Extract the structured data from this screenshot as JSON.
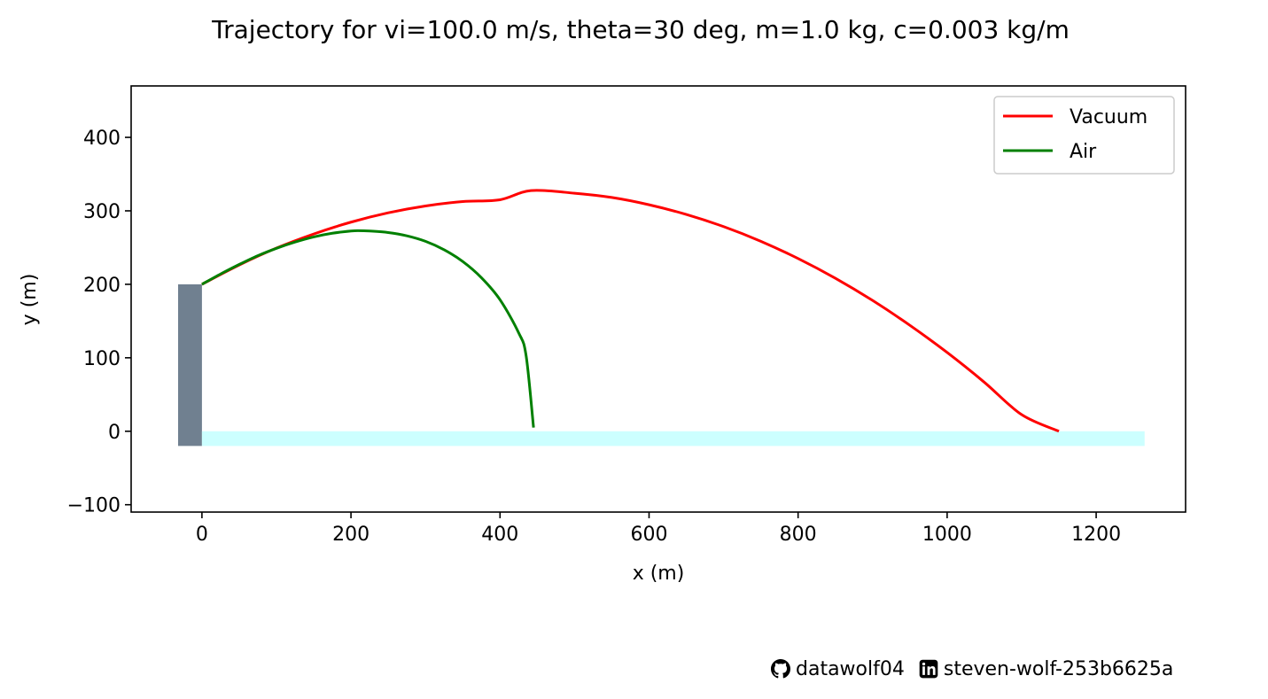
{
  "chart_data": {
    "type": "line",
    "title": "Trajectory for vi=100.0 m/s, theta=30 deg, m=1.0 kg, c=0.003 kg/m",
    "xlabel": "x (m)",
    "ylabel": "y (m)",
    "xlim": [
      -95,
      1320
    ],
    "ylim": [
      -110,
      470
    ],
    "xticks": [
      0,
      200,
      400,
      600,
      800,
      1000,
      1200
    ],
    "yticks": [
      -100,
      0,
      100,
      200,
      300,
      400
    ],
    "tick_labels_x": [
      "0",
      "200",
      "400",
      "600",
      "800",
      "1000",
      "1200"
    ],
    "tick_labels_y": [
      "−100",
      "0",
      "100",
      "200",
      "300",
      "400"
    ],
    "grid": false,
    "legend": "top-right",
    "series": [
      {
        "name": "Vacuum",
        "color": "#ff0000",
        "points": [
          [
            0,
            200
          ],
          [
            50,
            226.3
          ],
          [
            100,
            249.3
          ],
          [
            150,
            268.5
          ],
          [
            200,
            284.6
          ],
          [
            250,
            297.3
          ],
          [
            300,
            306.6
          ],
          [
            350,
            312.6
          ],
          [
            400,
            315.1
          ],
          [
            441.5,
            327.6
          ],
          [
            500,
            324.0
          ],
          [
            550,
            318.2
          ],
          [
            600,
            308.3
          ],
          [
            650,
            295.1
          ],
          [
            700,
            278.6
          ],
          [
            750,
            258.6
          ],
          [
            800,
            235.1
          ],
          [
            850,
            208.3
          ],
          [
            900,
            178.0
          ],
          [
            950,
            144.2
          ],
          [
            1000,
            107.2
          ],
          [
            1050,
            66.6
          ],
          [
            1100,
            22.6
          ],
          [
            1150,
            0
          ]
        ]
      },
      {
        "name": "Air",
        "color": "#008000",
        "points": [
          [
            0,
            200
          ],
          [
            25,
            214
          ],
          [
            50,
            227
          ],
          [
            75,
            239
          ],
          [
            100,
            249
          ],
          [
            125,
            257.5
          ],
          [
            150,
            264.5
          ],
          [
            175,
            269.5
          ],
          [
            200,
            272.5
          ],
          [
            210,
            273
          ],
          [
            225,
            272.5
          ],
          [
            250,
            270.5
          ],
          [
            275,
            266
          ],
          [
            300,
            258.5
          ],
          [
            325,
            247
          ],
          [
            350,
            231
          ],
          [
            375,
            209
          ],
          [
            400,
            179
          ],
          [
            425,
            134
          ],
          [
            435,
            103
          ],
          [
            445,
            5
          ]
        ]
      }
    ],
    "shapes": [
      {
        "name": "tower",
        "color": "#708090",
        "x": [
          -32,
          0
        ],
        "y": [
          -20,
          200
        ]
      },
      {
        "name": "ground",
        "color": "#ccffff",
        "x": [
          0,
          1265
        ],
        "y": [
          -20,
          0
        ]
      }
    ]
  },
  "footer": {
    "github_icon": "github-icon",
    "github_user": "datawolf04",
    "linkedin_icon": "linkedin-icon",
    "linkedin_user": "steven-wolf-253b6625a"
  }
}
